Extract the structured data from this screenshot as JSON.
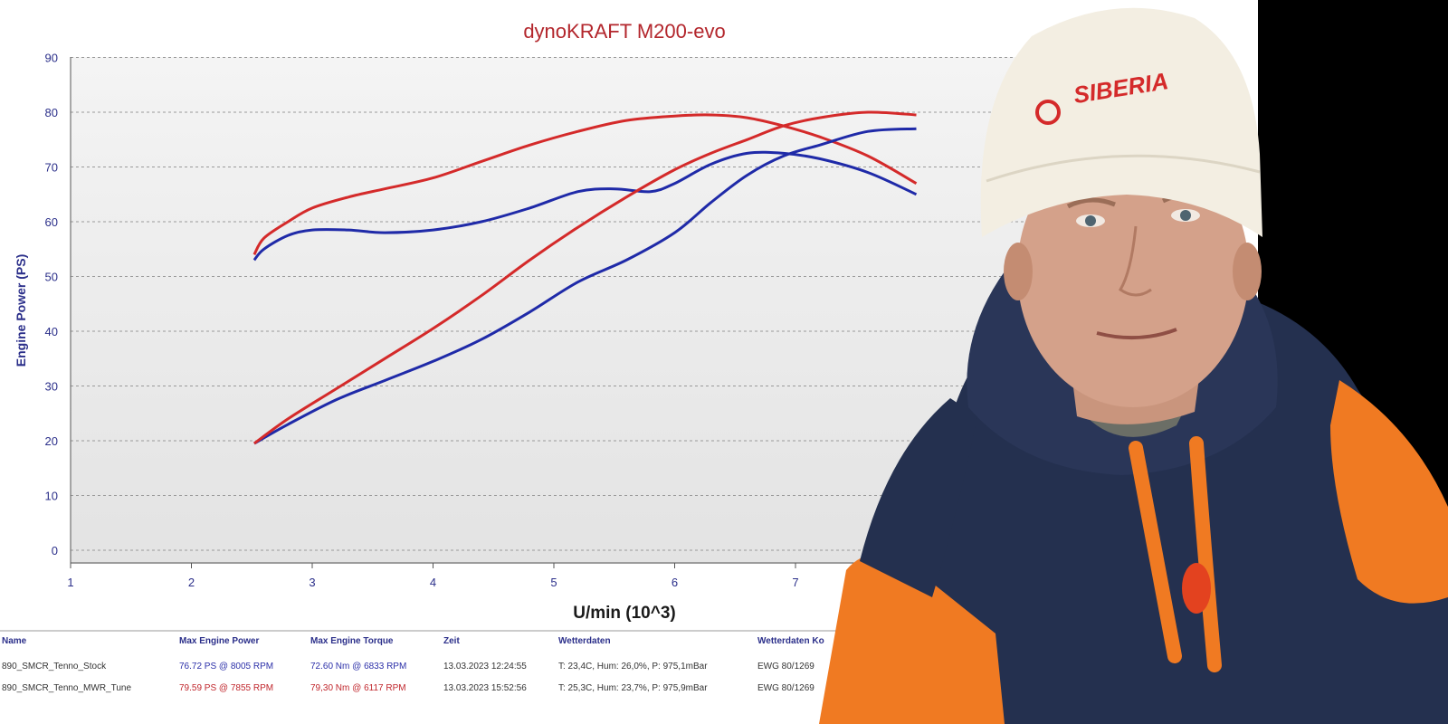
{
  "chart_data": {
    "type": "line",
    "title": "dynoKRAFT M200-evo",
    "xlabel": "U/min (10^3)",
    "ylabel": "Engine Power (PS)",
    "xlim": [
      1,
      8
    ],
    "ylim": [
      0,
      90
    ],
    "x_ticks": [
      "1",
      "2",
      "3",
      "4",
      "5",
      "6",
      "7"
    ],
    "y_ticks": [
      "0",
      "10",
      "20",
      "30",
      "40",
      "50",
      "60",
      "70",
      "80",
      "90"
    ],
    "grid": true,
    "series": [
      {
        "color": "#1f2aa8",
        "x": [
          2.52,
          2.6,
          2.8,
          3.0,
          3.3,
          3.6,
          4.0,
          4.4,
          4.8,
          5.2,
          5.5,
          5.8,
          6.0,
          6.3,
          6.6,
          6.9,
          7.2,
          7.6,
          8.0
        ],
        "y": [
          53,
          55,
          57.5,
          58.5,
          58.5,
          58,
          58.5,
          60,
          62.5,
          65.5,
          66,
          65.5,
          67,
          70.5,
          72.5,
          72.5,
          71.5,
          69,
          65
        ]
      },
      {
        "color": "#d42a2a",
        "x": [
          2.52,
          2.6,
          2.8,
          3.0,
          3.3,
          3.6,
          4.0,
          4.4,
          4.8,
          5.2,
          5.6,
          6.0,
          6.3,
          6.6,
          6.9,
          7.2,
          7.6,
          8.0
        ],
        "y": [
          54,
          57,
          60,
          62.5,
          64.5,
          66,
          68,
          71,
          74,
          76.5,
          78.5,
          79.3,
          79.5,
          79,
          77.5,
          75.5,
          72,
          67
        ]
      },
      {
        "color": "#1f2aa8",
        "x": [
          2.52,
          2.8,
          3.2,
          3.6,
          4.0,
          4.4,
          4.8,
          5.2,
          5.6,
          6.0,
          6.3,
          6.6,
          6.9,
          7.2,
          7.6,
          8.0
        ],
        "y": [
          19.5,
          23,
          27.5,
          31,
          34.5,
          38.5,
          43.5,
          49,
          53,
          58,
          63.5,
          68.5,
          72,
          74,
          76.5,
          77
        ]
      },
      {
        "color": "#d42a2a",
        "x": [
          2.52,
          2.8,
          3.2,
          3.6,
          4.0,
          4.4,
          4.8,
          5.2,
          5.6,
          6.0,
          6.3,
          6.6,
          6.9,
          7.2,
          7.6,
          8.0
        ],
        "y": [
          19.5,
          24,
          29.5,
          35,
          40.5,
          46.5,
          53,
          59,
          64.5,
          69.5,
          72.5,
          75,
          77.5,
          79,
          80,
          79.5
        ]
      }
    ]
  },
  "table": {
    "headers": [
      "Name",
      "Max Engine Power",
      "Max Engine Torque",
      "Zeit",
      "Wetterdaten",
      "Wetterdaten Ko"
    ],
    "rows": [
      {
        "name": "890_SMCR_Tenno_Stock",
        "power": "76.72 PS @ 8005 RPM",
        "torque": "72.60 Nm @ 6833 RPM",
        "zeit": "13.03.2023 12:24:55",
        "wetter": "T: 23,4C, Hum: 26,0%, P: 975,1mBar",
        "wetter_ko": "EWG 80/1269"
      },
      {
        "name": "890_SMCR_Tenno_MWR_Tune",
        "power": "79.59 PS @ 7855 RPM",
        "torque": "79,30 Nm @ 6117 RPM",
        "zeit": "13.03.2023 15:52:56",
        "wetter": "T: 25,3C, Hum: 23,7%, P: 975,9mBar",
        "wetter_ko": "EWG 80/1269"
      }
    ]
  },
  "beanie_text": "SIBERIA",
  "colors": {
    "blue": "#1f2aa8",
    "red": "#d42a2a",
    "plot_bg": "#eeeeee",
    "hoodie_navy": "#24304f",
    "hoodie_orange": "#f07a22"
  }
}
